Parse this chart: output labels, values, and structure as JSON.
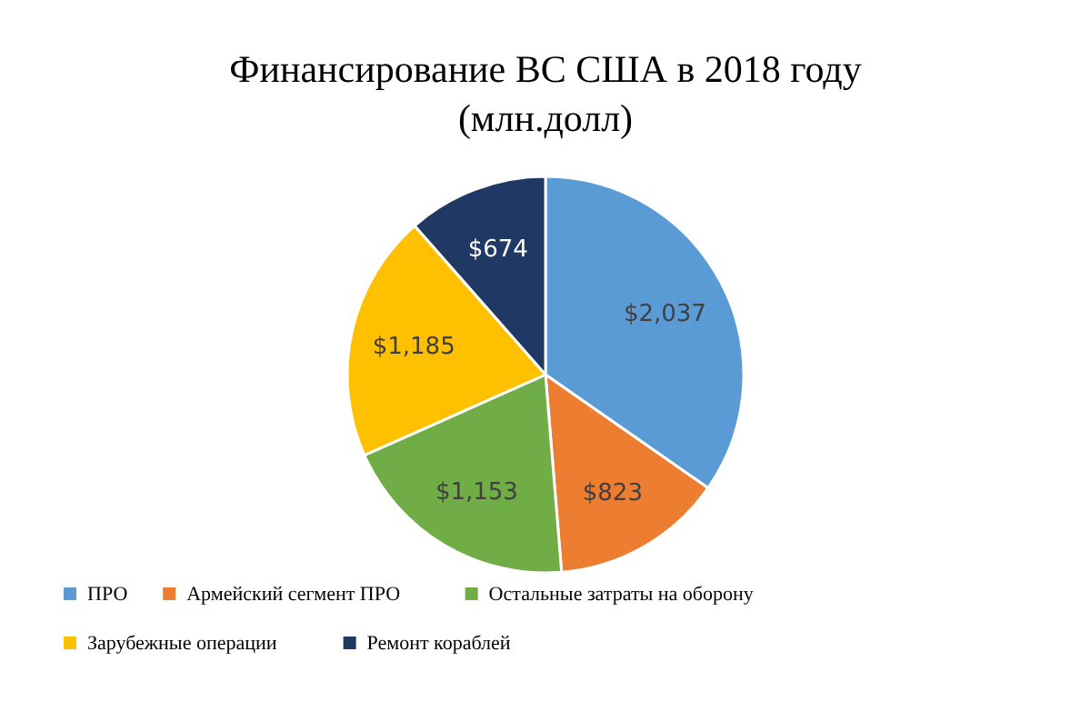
{
  "chart_data": {
    "type": "pie",
    "title": "Финансирование ВС США в 2018 году",
    "subtitle": "(млн.долл)",
    "categories": [
      "ПРО",
      "Армейский сегмент ПРО",
      "Остальные  затраты на оборону",
      "Зарубежные операции",
      "Ремонт кораблей"
    ],
    "values": [
      2037,
      823,
      1153,
      1185,
      674
    ],
    "colors": [
      "#5b9bd5",
      "#ed7d31",
      "#70ad47",
      "#ffc000",
      "#203864"
    ],
    "value_labels": [
      "$2,037",
      "$823",
      "$1,153",
      "$1,185",
      "$674"
    ],
    "legend": "bottom"
  }
}
